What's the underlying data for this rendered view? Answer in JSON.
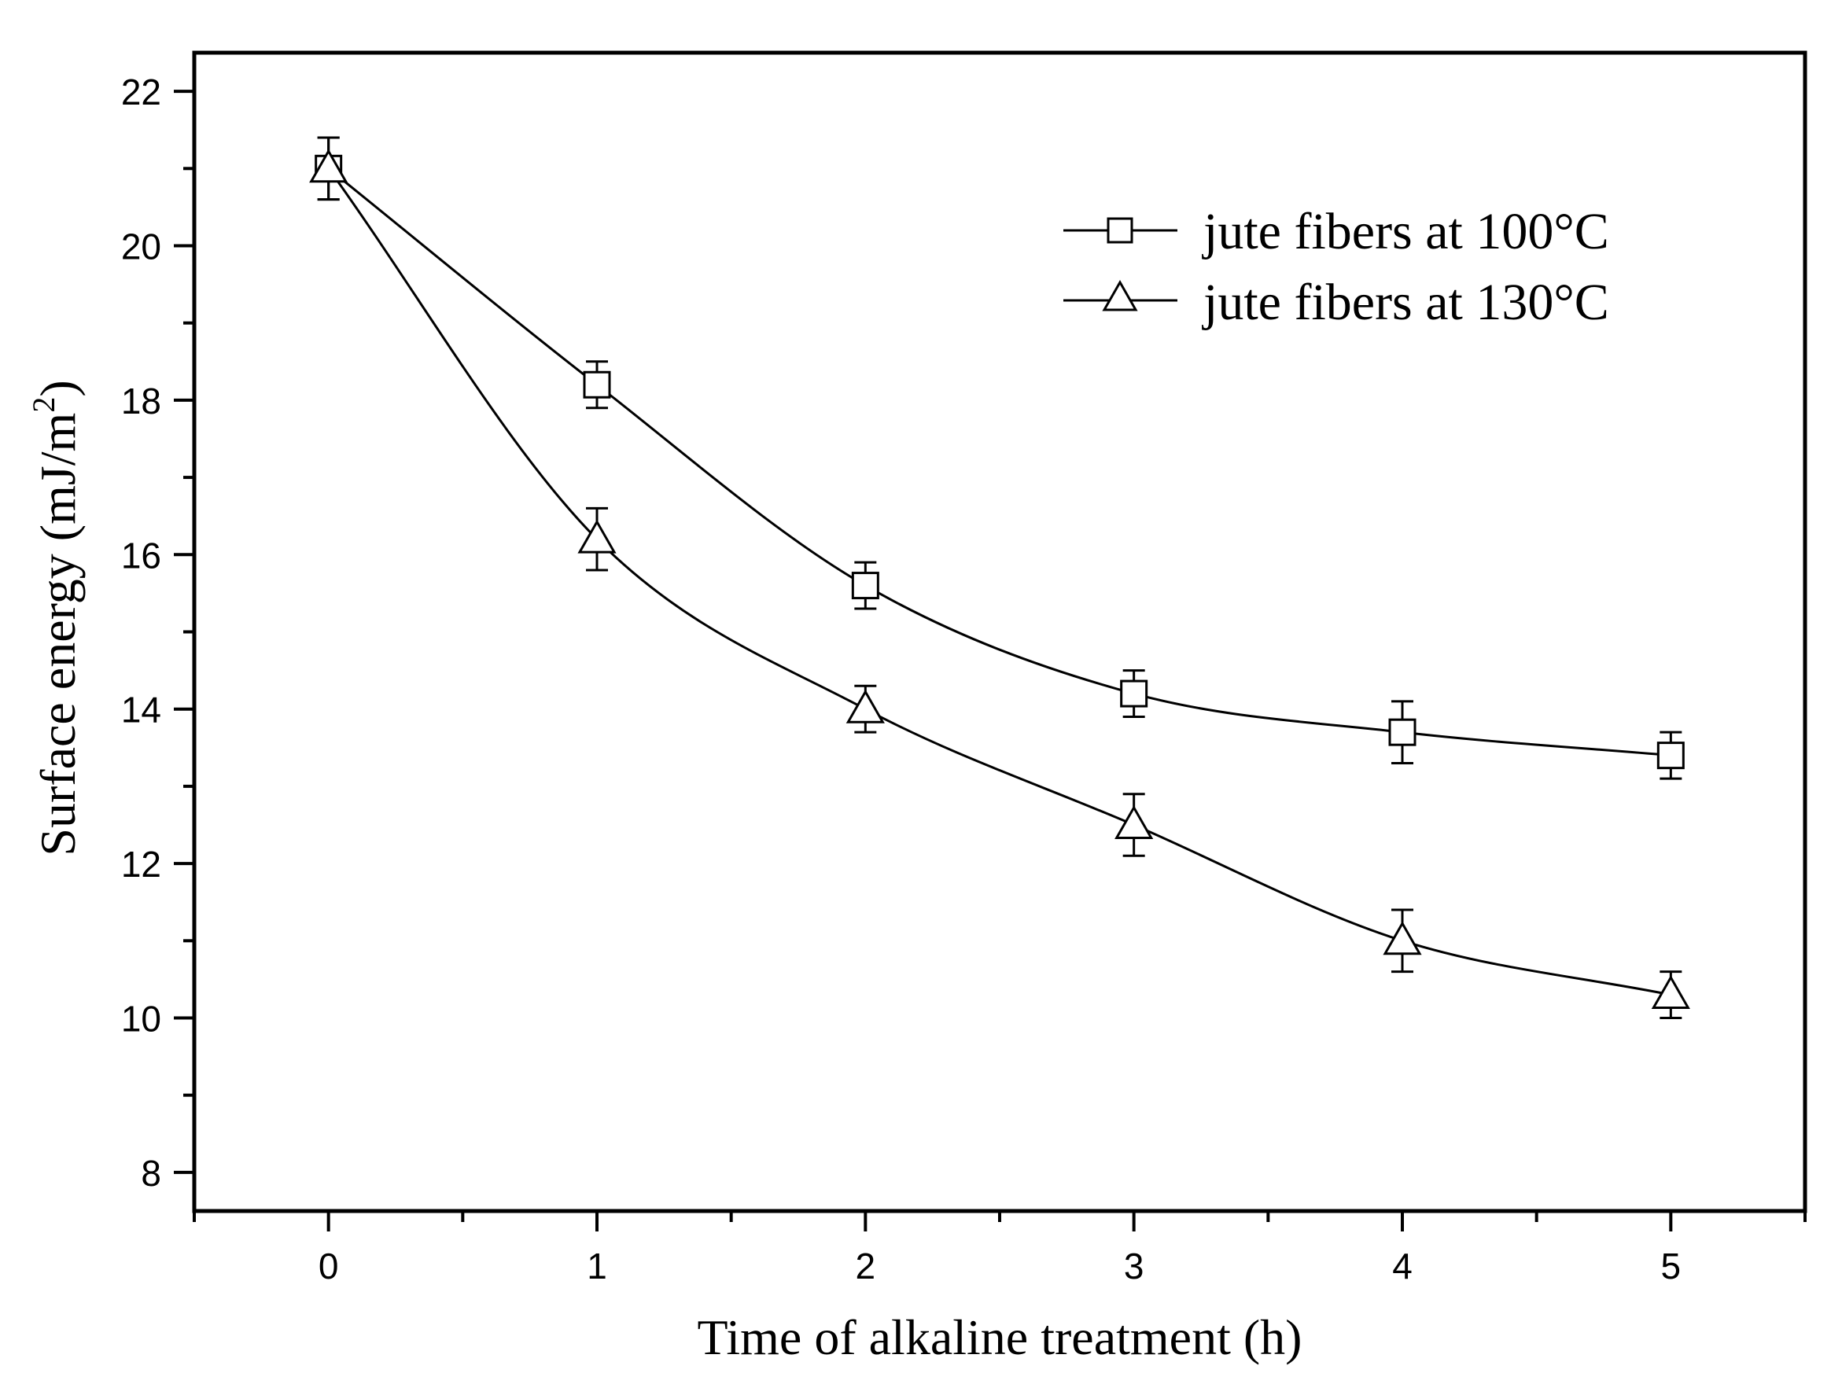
{
  "chart_data": {
    "type": "line",
    "title": "",
    "xlabel": "Time of alkaline treatment (h)",
    "ylabel": "Surface energy (mJ/m",
    "ylabel_sup": "2",
    "ylabel_close": ")",
    "xlim": [
      -0.5,
      5.5
    ],
    "ylim": [
      7.5,
      22.5
    ],
    "xticks": [
      0,
      1,
      2,
      3,
      4,
      5
    ],
    "xtick_labels": [
      "0",
      "1",
      "2",
      "3",
      "4",
      "5"
    ],
    "yticks": [
      8,
      10,
      12,
      14,
      16,
      18,
      20,
      22
    ],
    "ytick_labels": [
      "8",
      "10",
      "12",
      "14",
      "16",
      "18",
      "20",
      "22"
    ],
    "legend_position": "top-right",
    "grid": false,
    "series": [
      {
        "name": "jute fibers at 100°C",
        "marker": "square",
        "x": [
          0,
          1,
          2,
          3,
          4,
          5
        ],
        "y": [
          21.0,
          18.2,
          15.6,
          14.2,
          13.7,
          13.4
        ],
        "err": [
          0.4,
          0.3,
          0.3,
          0.3,
          0.4,
          0.3
        ]
      },
      {
        "name": "jute fibers at 130°C",
        "marker": "triangle",
        "x": [
          0,
          1,
          2,
          3,
          4,
          5
        ],
        "y": [
          21.0,
          16.2,
          14.0,
          12.5,
          11.0,
          10.3
        ],
        "err": [
          0.4,
          0.4,
          0.3,
          0.4,
          0.4,
          0.3
        ]
      }
    ]
  }
}
